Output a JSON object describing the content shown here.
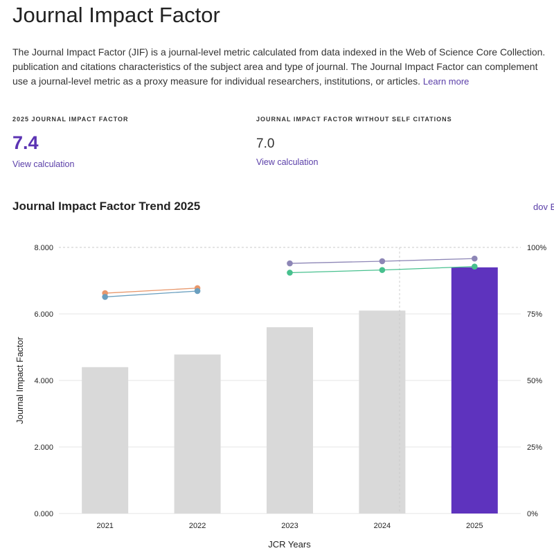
{
  "page": {
    "title": "Journal Impact Factor",
    "description_lines": [
      "The Journal Impact Factor (JIF) is a journal-level metric calculated from data indexed in the Web of Science Core Collection.",
      "publication and citations characteristics of the subject area and type of journal. The Journal Impact Factor can complement",
      "use a journal-level metric as a proxy measure for individual researchers, institutions, or articles."
    ],
    "learn_more": "Learn more"
  },
  "metrics": {
    "jif": {
      "label": "2025 JOURNAL IMPACT FACTOR",
      "value": "7.4",
      "link": "View calculation"
    },
    "jif_no_self": {
      "label": "JOURNAL IMPACT FACTOR WITHOUT SELF CITATIONS",
      "value": "7.0",
      "link": "View calculation"
    }
  },
  "chart_section": {
    "title": "Journal Impact Factor Trend 2025",
    "download_label": "dov E"
  },
  "chart_data": {
    "type": "bar",
    "categories": [
      "2021",
      "2022",
      "2023",
      "2024",
      "2025"
    ],
    "values": [
      4.4,
      4.78,
      5.6,
      6.1,
      7.4
    ],
    "highlight_index": 4,
    "xlabel": "JCR Years",
    "ylabel": "Journal Impact Factor",
    "ylim": [
      0,
      8
    ],
    "y_ticks": [
      "0.000",
      "2.000",
      "4.000",
      "6.000",
      "8.000"
    ],
    "y2lim": [
      0,
      100
    ],
    "y2_ticks": [
      "0%",
      "25%",
      "50%",
      "75%",
      "100%"
    ],
    "grid": true,
    "line_series": [
      {
        "color": "#e8976b",
        "points": [
          {
            "x": "2021",
            "y": 82.8
          },
          {
            "x": "2022",
            "y": 84.7
          }
        ]
      },
      {
        "color": "#6a9fbf",
        "points": [
          {
            "x": "2021",
            "y": 81.4
          },
          {
            "x": "2022",
            "y": 83.6
          }
        ]
      },
      {
        "color": "#8d86b6",
        "points": [
          {
            "x": "2023",
            "y": 94.0
          },
          {
            "x": "2024",
            "y": 94.8
          },
          {
            "x": "2025",
            "y": 95.8
          }
        ]
      },
      {
        "color": "#47c08e",
        "points": [
          {
            "x": "2023",
            "y": 90.5
          },
          {
            "x": "2024",
            "y": 91.5
          },
          {
            "x": "2025",
            "y": 92.8
          }
        ]
      }
    ],
    "colors": {
      "bar_default": "#d9d9d9",
      "bar_highlight": "#5e33be",
      "grid": "#e6e6e6"
    }
  }
}
